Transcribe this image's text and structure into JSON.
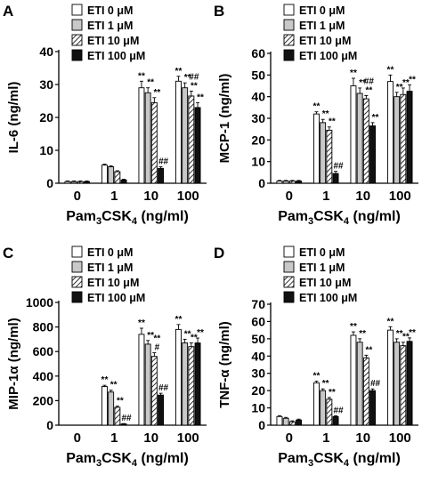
{
  "colors": {
    "etiZero": "#ffffff",
    "etiOne": "#c8c8c8",
    "etiTen": "hatch",
    "etiHundred": "#111111",
    "axis": "#000000"
  },
  "legend": [
    "ETI 0 μM",
    "ETI 1 μM",
    "ETI 10 μM",
    "ETI 100 μM"
  ],
  "xlabel_main": "Pam",
  "xlabel_sub": "3",
  "xlabel_rest": "CSK",
  "xlabel_sub2": "4",
  "xlabel_unit": " (ng/ml)",
  "chart_data": [
    {
      "panel": "A",
      "type": "bar",
      "categories": [
        "0",
        "1",
        "10",
        "100"
      ],
      "ylabel": "IL-6 (ng/ml)",
      "ylim": [
        0,
        40
      ],
      "yticks": [
        0,
        10,
        20,
        30,
        40
      ],
      "series": [
        {
          "name": "ETI 0 μM",
          "values": [
            0.5,
            5.5,
            29,
            31
          ],
          "errors": [
            0.2,
            0.3,
            2,
            1.5
          ],
          "annotations": [
            "",
            "",
            "**",
            "**"
          ]
        },
        {
          "name": "ETI 1 μM",
          "values": [
            0.5,
            5,
            27.5,
            29
          ],
          "errors": [
            0.2,
            0.3,
            1.5,
            1.5
          ],
          "annotations": [
            "",
            "",
            "**",
            "**"
          ]
        },
        {
          "name": "ETI 10 μM",
          "values": [
            0.5,
            3.5,
            24.5,
            26.5
          ],
          "errors": [
            0.2,
            0.3,
            1.5,
            1.5
          ],
          "annotations": [
            "",
            "",
            "**",
            "**##"
          ]
        },
        {
          "name": "ETI 100 μM",
          "values": [
            0.5,
            1,
            4.5,
            23
          ],
          "errors": [
            0.2,
            0.2,
            0.5,
            1.5
          ],
          "annotations": [
            "",
            "",
            "##",
            "**"
          ]
        }
      ]
    },
    {
      "panel": "B",
      "type": "bar",
      "categories": [
        "0",
        "1",
        "10",
        "100"
      ],
      "ylabel": "MCP-1 (ng/ml)",
      "ylim": [
        0,
        60
      ],
      "yticks": [
        0,
        10,
        20,
        30,
        40,
        50,
        60
      ],
      "series": [
        {
          "name": "ETI 0 μM",
          "values": [
            1,
            32,
            45,
            47
          ],
          "errors": [
            0.3,
            1,
            3.5,
            3
          ],
          "annotations": [
            "",
            "**",
            "**",
            "**"
          ]
        },
        {
          "name": "ETI 1 μM",
          "values": [
            1,
            28,
            41.5,
            40
          ],
          "errors": [
            0.3,
            1.5,
            2.5,
            2
          ],
          "annotations": [
            "",
            "**",
            "**",
            "**"
          ]
        },
        {
          "name": "ETI 10 μM",
          "values": [
            1,
            24.5,
            39,
            41
          ],
          "errors": [
            0.3,
            1.5,
            1.5,
            3
          ],
          "annotations": [
            "",
            "**",
            "**##",
            "**"
          ]
        },
        {
          "name": "ETI 100 μM",
          "values": [
            1,
            4.5,
            26.5,
            42.5
          ],
          "errors": [
            0.3,
            1,
            1.5,
            3
          ],
          "annotations": [
            "",
            "##",
            "**",
            "**"
          ]
        }
      ]
    },
    {
      "panel": "C",
      "type": "bar",
      "categories": [
        "0",
        "1",
        "10",
        "100"
      ],
      "ylabel": "MIP-1α (ng/ml)",
      "ylim": [
        0,
        1000
      ],
      "yticks": [
        0,
        200,
        400,
        600,
        800,
        1000
      ],
      "series": [
        {
          "name": "ETI 0 μM",
          "values": [
            0,
            315,
            740,
            780
          ],
          "errors": [
            0,
            10,
            50,
            40
          ],
          "annotations": [
            "",
            "**",
            "**",
            "**"
          ]
        },
        {
          "name": "ETI 1 μM",
          "values": [
            0,
            270,
            660,
            670
          ],
          "errors": [
            0,
            15,
            30,
            30
          ],
          "annotations": [
            "",
            "**",
            "**",
            "**"
          ]
        },
        {
          "name": "ETI 10 μM",
          "values": [
            0,
            145,
            560,
            640
          ],
          "errors": [
            0,
            10,
            30,
            30
          ],
          "annotations": [
            "",
            "**",
            "#**",
            "**"
          ]
        },
        {
          "name": "ETI 100 μM",
          "values": [
            0,
            10,
            245,
            670
          ],
          "errors": [
            0,
            3,
            15,
            40
          ],
          "annotations": [
            "",
            "##",
            "##",
            "**"
          ]
        }
      ]
    },
    {
      "panel": "D",
      "type": "bar",
      "categories": [
        "0",
        "1",
        "10",
        "100"
      ],
      "ylabel": "TNF-α (ng/ml)",
      "ylim": [
        0,
        70
      ],
      "yticks": [
        0,
        10,
        20,
        30,
        40,
        50,
        60,
        70
      ],
      "series": [
        {
          "name": "ETI 0 μM",
          "values": [
            5,
            24.5,
            52,
            55
          ],
          "errors": [
            0.5,
            1,
            2,
            2
          ],
          "annotations": [
            "",
            "**",
            "**",
            "**"
          ]
        },
        {
          "name": "ETI 1 μM",
          "values": [
            4,
            20,
            48,
            48
          ],
          "errors": [
            0.5,
            1,
            2,
            2
          ],
          "annotations": [
            "",
            "**",
            "**",
            "**"
          ]
        },
        {
          "name": "ETI 10 μM",
          "values": [
            2,
            15,
            39,
            46
          ],
          "errors": [
            0.5,
            1,
            1.5,
            2
          ],
          "annotations": [
            "",
            "**",
            "**",
            "**"
          ]
        },
        {
          "name": "ETI 100 μM",
          "values": [
            3,
            5,
            20,
            48.5
          ],
          "errors": [
            0.5,
            0.5,
            1,
            2
          ],
          "annotations": [
            "",
            "##",
            "##",
            "**"
          ]
        }
      ]
    }
  ]
}
